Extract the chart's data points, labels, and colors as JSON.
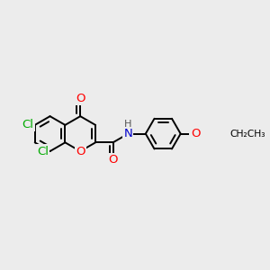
{
  "bg_color": "#ececec",
  "bond_color": "#000000",
  "atom_colors": {
    "O": "#ff0000",
    "N": "#0000cd",
    "Cl": "#00aa00",
    "C": "#000000",
    "H": "#555555"
  },
  "line_width": 1.4,
  "font_size": 9.5,
  "figsize": [
    3.0,
    3.0
  ],
  "dpi": 100
}
